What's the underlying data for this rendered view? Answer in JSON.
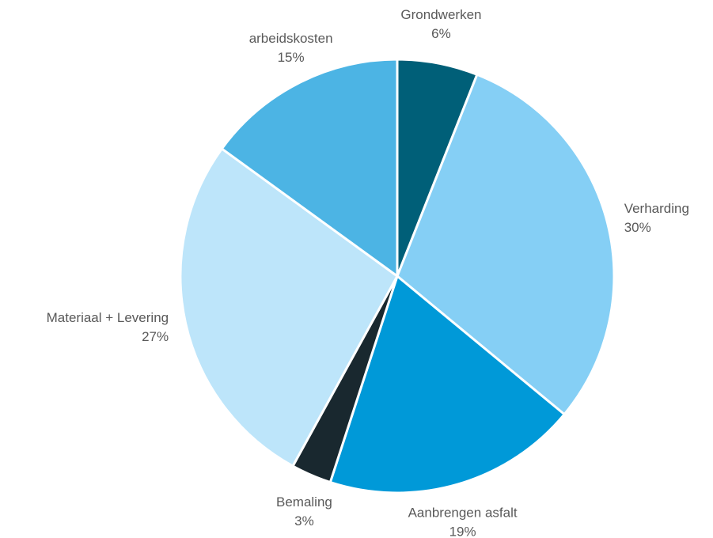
{
  "chart_data": {
    "type": "pie",
    "categories": [
      "Grondwerken",
      "Verharding",
      "Aanbrengen asfalt",
      "Bemaling",
      "Materiaal + Levering",
      "arbeidskosten"
    ],
    "values": [
      6,
      30,
      19,
      3,
      27,
      15
    ],
    "value_labels": [
      "6%",
      "30%",
      "19%",
      "3%",
      "27%",
      "15%"
    ],
    "colors": [
      "#005f78",
      "#85cff5",
      "#0099d8",
      "#19282f",
      "#bde5fa",
      "#4cb4e4"
    ]
  }
}
